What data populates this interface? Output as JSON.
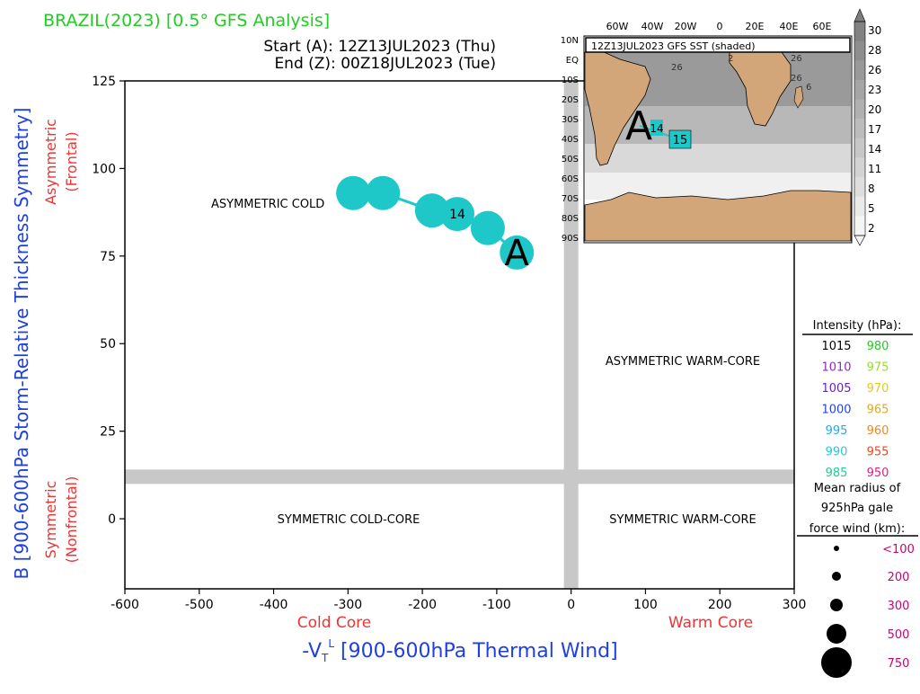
{
  "header": {
    "title": "BRAZIL(2023) [0.5° GFS Analysis]",
    "start_label": "Start (A): 12Z13JUL2023 (Thu)",
    "end_label": "End (Z): 00Z18JUL2023 (Tue)"
  },
  "colors": {
    "title": "#22cc22",
    "axis_blue": "#1f3fe0",
    "axis_red": "#ee3333",
    "track": "#1fc8c8",
    "band": "#c8c8c8",
    "land": "#d2a679",
    "legend_pink": "#cc0077"
  },
  "chart_data": {
    "type": "scatter",
    "title": "",
    "xlabel": "-VT^L [900-600hPa Thermal Wind]",
    "xlabel_main": "-V",
    "xlabel_sub": "T",
    "xlabel_sup": "L",
    "xlabel_rest": " [900-600hPa Thermal Wind]",
    "ylabel": "B [900-600hPa Storm-Relative Thickness Symmetry]",
    "xlim": [
      -600,
      300
    ],
    "ylim": [
      -20,
      125
    ],
    "xticks": [
      -600,
      -500,
      -400,
      -300,
      -200,
      -100,
      0,
      100,
      200,
      300
    ],
    "yticks": [
      0,
      25,
      50,
      75,
      100,
      125
    ],
    "side_labels": {
      "cold_core": "Cold Core",
      "warm_core": "Warm Core",
      "asym_top": "Asymmetric",
      "asym_bottom": "(Frontal)",
      "sym_top": "Symmetric",
      "sym_bottom": "(Nonfrontal)"
    },
    "quadrants": {
      "asym_cold": "ASYMMETRIC COLD",
      "asym_warm": "ASYMMETRIC WARM-CORE",
      "sym_cold": "SYMMETRIC COLD-CORE",
      "sym_warm": "SYMMETRIC WARM-CORE"
    },
    "series": [
      {
        "points": [
          {
            "x": -73,
            "y": 76,
            "label": "A"
          },
          {
            "x": -112,
            "y": 83,
            "label": ""
          },
          {
            "x": -153,
            "y": 87,
            "label": "14"
          },
          {
            "x": -187,
            "y": 88,
            "label": ""
          },
          {
            "x": -253,
            "y": 93,
            "label": ""
          },
          {
            "x": -293,
            "y": 93,
            "label": ""
          }
        ]
      }
    ]
  },
  "inset_map": {
    "label": "12Z13JUL2023 GFS SST (shaded)",
    "lon_ticks": [
      "60W",
      "40W",
      "20W",
      "0",
      "20E",
      "40E",
      "60E"
    ],
    "lat_ticks": [
      "10N",
      "EQ",
      "10S",
      "20S",
      "30S",
      "40S",
      "50S",
      "60S",
      "70S",
      "80S",
      "90S"
    ],
    "colorbar_ticks": [
      "30",
      "28",
      "26",
      "23",
      "20",
      "17",
      "14",
      "11",
      "8",
      "5",
      "2"
    ],
    "track_start": "A",
    "track_mid": "14",
    "track_end": "15",
    "sst_labels": [
      "26",
      "2",
      "26",
      "26",
      "6"
    ]
  },
  "legend": {
    "intensity_title": "Intensity (hPa):",
    "intensity": [
      {
        "left": "1015",
        "left_color": "#000000",
        "right": "980",
        "right_color": "#22cc22"
      },
      {
        "left": "1010",
        "left_color": "#9922cc",
        "right": "975",
        "right_color": "#99dd22"
      },
      {
        "left": "1005",
        "left_color": "#6622cc",
        "right": "970",
        "right_color": "#ddcc22"
      },
      {
        "left": "1000",
        "left_color": "#2244ee",
        "right": "965",
        "right_color": "#ddaa22"
      },
      {
        "left": "995",
        "left_color": "#22aaee",
        "right": "960",
        "right_color": "#ee8822"
      },
      {
        "left": "990",
        "left_color": "#22ccdd",
        "right": "955",
        "right_color": "#ee4422"
      },
      {
        "left": "985",
        "left_color": "#22cc99",
        "right": "950",
        "right_color": "#dd2288"
      }
    ],
    "radius_title_1": "Mean radius of",
    "radius_title_2": "925hPa gale",
    "radius_title_3": "force wind (km):",
    "radii": [
      "<100",
      "200",
      "300",
      "500",
      "750"
    ]
  }
}
